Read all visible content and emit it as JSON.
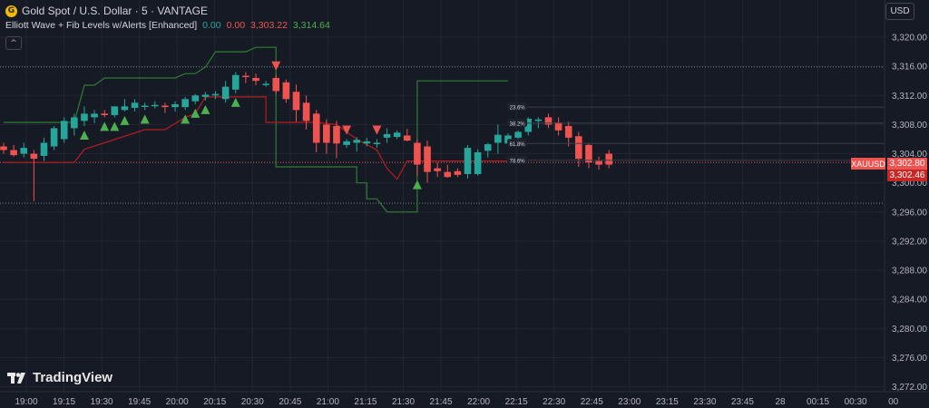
{
  "header": {
    "logo_glyph": "G",
    "title": "Gold Spot / U.S. Dollar · 5 · VANTAGE",
    "indicator_name": "Elliott Wave + Fib Levels w/Alerts [Enhanced]",
    "indicator_values": [
      "0.00",
      "0.00",
      "3,303.22",
      "3,314.64"
    ],
    "collapse_glyph": "^"
  },
  "currency_button": "USD",
  "branding": "TradingView",
  "symbol_tag": "XAUUSD",
  "last_price": "3,302.80",
  "second_price": "3,302.46",
  "colors": {
    "bg": "#161a25",
    "up": "#26a69a",
    "down": "#ef5350",
    "band": "#2e7d32",
    "support": "#b71c1c",
    "triangle_up": "#4caf50",
    "triangle_down": "#ef5350"
  },
  "chart_data": {
    "type": "candlestick",
    "symbol": "XAUUSD",
    "timeframe": "5",
    "y_ticks": [
      "3,320.00",
      "3,316.00",
      "3,312.00",
      "3,308.00",
      "3,304.00",
      "3,300.00",
      "3,296.00",
      "3,292.00",
      "3,288.00",
      "3,284.00",
      "3,280.00",
      "3,276.00",
      "3,272.00"
    ],
    "y_values": [
      3320,
      3316,
      3312,
      3308,
      3304,
      3300,
      3296,
      3292,
      3288,
      3284,
      3280,
      3276,
      3272
    ],
    "x_ticks": [
      "19:00",
      "19:15",
      "19:30",
      "19:45",
      "20:00",
      "20:15",
      "20:30",
      "20:45",
      "21:00",
      "21:15",
      "21:30",
      "21:45",
      "22:00",
      "22:15",
      "22:30",
      "22:45",
      "23:00",
      "23:15",
      "23:30",
      "23:45",
      "28",
      "00:15",
      "00:30",
      "00"
    ],
    "ylim": [
      3271,
      3322
    ],
    "horizontal_levels": [
      3315.9,
      3297.2
    ],
    "candles": [
      [
        3305.0,
        3305.5,
        3304.0,
        3304.5
      ],
      [
        3304.5,
        3305.2,
        3303.6,
        3303.8
      ],
      [
        3304.0,
        3305.5,
        3303.5,
        3304.8
      ],
      [
        3304.0,
        3304.5,
        3297.5,
        3303.3
      ],
      [
        3303.7,
        3306.2,
        3303.0,
        3305.5
      ],
      [
        3305.0,
        3307.8,
        3304.5,
        3307.5
      ],
      [
        3306.0,
        3309.0,
        3305.5,
        3308.5
      ],
      [
        3307.5,
        3309.5,
        3306.5,
        3309.0
      ],
      [
        3308.5,
        3310.5,
        3307.8,
        3309.5
      ],
      [
        3309.0,
        3310.0,
        3308.2,
        3309.5
      ],
      [
        3309.5,
        3310.0,
        3309.0,
        3309.3
      ],
      [
        3309.3,
        3310.5,
        3309.0,
        3310.5
      ],
      [
        3310.0,
        3311.5,
        3309.8,
        3310.5
      ],
      [
        3310.3,
        3311.5,
        3309.8,
        3311.0
      ],
      [
        3310.5,
        3311.0,
        3310.0,
        3310.6
      ],
      [
        3310.6,
        3311.2,
        3310.2,
        3310.7
      ],
      [
        3310.6,
        3311.0,
        3309.6,
        3310.4
      ],
      [
        3310.4,
        3311.2,
        3309.8,
        3310.8
      ],
      [
        3310.4,
        3311.8,
        3310.0,
        3311.5
      ],
      [
        3311.2,
        3312.2,
        3310.8,
        3312.0
      ],
      [
        3311.8,
        3312.5,
        3311.3,
        3312.1
      ],
      [
        3312.0,
        3312.6,
        3311.5,
        3312.2
      ],
      [
        3311.5,
        3314.0,
        3311.0,
        3313.2
      ],
      [
        3312.8,
        3315.2,
        3312.3,
        3314.8
      ],
      [
        3314.7,
        3315.2,
        3313.7,
        3314.6
      ],
      [
        3314.4,
        3315.0,
        3313.4,
        3314.0
      ],
      [
        3313.5,
        3314.0,
        3313.2,
        3313.6
      ],
      [
        3314.4,
        3314.8,
        3312.2,
        3312.6
      ],
      [
        3313.8,
        3314.2,
        3311.0,
        3311.5
      ],
      [
        3312.5,
        3313.5,
        3308.4,
        3310.0
      ],
      [
        3311.0,
        3312.0,
        3307.3,
        3308.5
      ],
      [
        3309.5,
        3310.0,
        3304.2,
        3305.5
      ],
      [
        3308.0,
        3308.7,
        3304.0,
        3305.5
      ],
      [
        3307.8,
        3308.5,
        3303.4,
        3305.4
      ],
      [
        3305.2,
        3306.0,
        3304.8,
        3305.7
      ],
      [
        3305.5,
        3306.3,
        3304.3,
        3305.9
      ],
      [
        3305.4,
        3306.2,
        3305.0,
        3305.7
      ],
      [
        3305.4,
        3306.0,
        3304.8,
        3305.5
      ],
      [
        3306.2,
        3307.5,
        3305.5,
        3306.7
      ],
      [
        3306.3,
        3307.2,
        3306.0,
        3306.9
      ],
      [
        3306.5,
        3307.4,
        3305.7,
        3305.8
      ],
      [
        3305.5,
        3306.0,
        3301.0,
        3302.5
      ],
      [
        3305.0,
        3305.8,
        3300.0,
        3301.5
      ],
      [
        3302.0,
        3302.8,
        3300.8,
        3301.6
      ],
      [
        3301.5,
        3302.5,
        3300.7,
        3300.8
      ],
      [
        3301.6,
        3302.0,
        3300.8,
        3301.1
      ],
      [
        3301.2,
        3305.2,
        3300.6,
        3304.8
      ],
      [
        3301.2,
        3304.6,
        3301.0,
        3304.2
      ],
      [
        3304.4,
        3305.5,
        3303.5,
        3305.3
      ],
      [
        3305.5,
        3308.0,
        3304.0,
        3306.6
      ],
      [
        3305.4,
        3306.8,
        3305.0,
        3306.5
      ],
      [
        3306.2,
        3307.2,
        3305.5,
        3307.0
      ],
      [
        3307.0,
        3309.0,
        3306.5,
        3308.8
      ],
      [
        3308.5,
        3309.0,
        3307.5,
        3308.7
      ],
      [
        3309.0,
        3309.5,
        3307.5,
        3308.0
      ],
      [
        3308.3,
        3309.0,
        3306.5,
        3307.2
      ],
      [
        3307.8,
        3308.4,
        3305.0,
        3306.2
      ],
      [
        3306.4,
        3307.0,
        3302.2,
        3303.3
      ],
      [
        3305.2,
        3305.5,
        3302.0,
        3302.8
      ],
      [
        3303.0,
        3303.6,
        3301.8,
        3302.5
      ],
      [
        3304.0,
        3304.5,
        3302.0,
        3302.5
      ]
    ],
    "upper_band": [
      [
        0,
        3308.3
      ],
      [
        7,
        3308.3
      ],
      [
        8,
        3313.4
      ],
      [
        9,
        3313.4
      ],
      [
        10,
        3314.4
      ],
      [
        17,
        3314.4
      ],
      [
        18,
        3315.0
      ],
      [
        19,
        3315.0
      ],
      [
        20,
        3315.9
      ],
      [
        21,
        3318.0
      ],
      [
        24,
        3318.0
      ],
      [
        25,
        3318.6
      ],
      [
        26,
        3318.6
      ],
      [
        26,
        3318.6
      ],
      [
        27,
        3318.6
      ],
      [
        27,
        3302.2
      ],
      [
        34,
        3302.2
      ],
      [
        35,
        3302.2
      ],
      [
        35,
        3300.0
      ],
      [
        36,
        3300.0
      ],
      [
        36,
        3297.8
      ],
      [
        37,
        3297.8
      ],
      [
        38,
        3296.0
      ],
      [
        41,
        3296.0
      ],
      [
        41,
        3314.0
      ],
      [
        50,
        3314.0
      ]
    ],
    "lower_band": [
      [
        0,
        3302.8
      ],
      [
        7,
        3302.8
      ],
      [
        8,
        3304.6
      ],
      [
        14,
        3307.3
      ],
      [
        16,
        3307.3
      ],
      [
        18,
        3309.0
      ],
      [
        19,
        3309.5
      ],
      [
        20,
        3311.8
      ],
      [
        23,
        3311.8
      ],
      [
        24,
        3311.8
      ],
      [
        25,
        3311.8
      ],
      [
        26,
        3311.8
      ],
      [
        26,
        3308.3
      ],
      [
        31,
        3308.3
      ],
      [
        33,
        3308.0
      ],
      [
        35,
        3306.0
      ],
      [
        37,
        3304.5
      ],
      [
        38,
        3302.0
      ],
      [
        39,
        3300.5
      ],
      [
        40,
        3303.0
      ],
      [
        41,
        3303.0
      ],
      [
        50,
        3303.0
      ]
    ],
    "support_line_extra": [
      [
        43,
        3303.0
      ],
      [
        52,
        3303.0
      ]
    ],
    "triangles_up": [
      8,
      10,
      11,
      12,
      14,
      18,
      19,
      20,
      23,
      41
    ],
    "triangles_down": [
      27,
      34,
      37
    ],
    "fib_levels": [
      {
        "label": "23.6%",
        "value": 3310.4
      },
      {
        "label": "38.2%",
        "value": 3308.2
      },
      {
        "label": "61.8%",
        "value": 3305.4
      },
      {
        "label": "78.6%",
        "value": 3303.1
      }
    ]
  }
}
